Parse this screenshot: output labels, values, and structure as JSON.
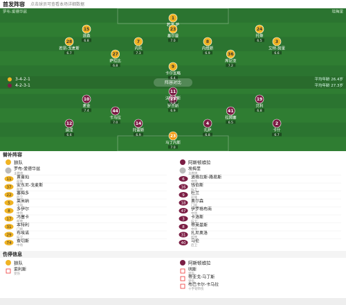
{
  "header": {
    "title": "首发阵容",
    "subtitle": "点击球员可查看本场详细数据"
  },
  "pitch": {
    "center_label": "阵容对比"
  },
  "home": {
    "team": "狼队",
    "coach": "罗布-爱德华兹",
    "formation": "3-4-2-1",
    "info": "平均年龄 26.4岁",
    "color": "#f0b323",
    "players": [
      {
        "number": "1",
        "name": "若泽-萨",
        "rating": "6.9"
      },
      {
        "number": "15",
        "name": "道森",
        "rating": "6.8"
      },
      {
        "number": "23",
        "name": "基尔曼",
        "rating": "7.0"
      },
      {
        "number": "24",
        "name": "托蒂",
        "rating": "6.5"
      },
      {
        "number": "28",
        "name": "若昂-戈麦斯",
        "rating": "6.7"
      },
      {
        "number": "7",
        "name": "内托",
        "rating": "7.3"
      },
      {
        "number": "8",
        "name": "内维斯",
        "rating": "6.9"
      },
      {
        "number": "3",
        "name": "艾特-努里",
        "rating": "6.6"
      },
      {
        "number": "27",
        "name": "萨拉比",
        "rating": "6.8"
      },
      {
        "number": "36",
        "name": "库尼亚",
        "rating": "7.2"
      },
      {
        "number": "9",
        "name": "卡尔瓦略",
        "rating": "6.4"
      }
    ]
  },
  "away": {
    "team": "阿斯顿维拉",
    "coach": "埃梅里",
    "formation": "4-2-3-1",
    "info": "平均年龄 27.3岁",
    "color": "#7b1e44",
    "gk_color": "#f39c12",
    "players": [
      {
        "number": "23",
        "name": "马丁内斯",
        "rating": "7.0"
      },
      {
        "number": "12",
        "name": "迪涅",
        "rating": "6.6"
      },
      {
        "number": "14",
        "name": "托雷斯",
        "rating": "6.9"
      },
      {
        "number": "4",
        "name": "孔萨",
        "rating": "6.8"
      },
      {
        "number": "2",
        "name": "卡什",
        "rating": "6.7"
      },
      {
        "number": "44",
        "name": "卡马拉",
        "rating": "7.0"
      },
      {
        "number": "41",
        "name": "拉姆塞",
        "rating": "6.5"
      },
      {
        "number": "10",
        "name": "麦金",
        "rating": "7.4"
      },
      {
        "number": "27",
        "name": "罗杰斯",
        "rating": "6.9"
      },
      {
        "number": "19",
        "name": "贝利",
        "rating": "6.8"
      },
      {
        "number": "11",
        "name": "沃特金斯",
        "rating": "7.5"
      }
    ]
  },
  "bench": {
    "title": "替补阵容",
    "home": {
      "team": "狼队",
      "coach_role": "主教练",
      "players": [
        {
          "number": "11",
          "name": "黄喜灿",
          "position": "前锋"
        },
        {
          "number": "37",
          "name": "安东尼-戈麦斯",
          "position": "前锋"
        },
        {
          "number": "22",
          "name": "塞梅多",
          "position": "后卫"
        },
        {
          "number": "5",
          "name": "莱米纳",
          "position": "中场"
        },
        {
          "number": "8",
          "name": "多伊尔",
          "position": "中场"
        },
        {
          "number": "17",
          "name": "冯塞卡",
          "position": "前锋"
        },
        {
          "number": "31",
          "name": "本特利",
          "position": "门将"
        },
        {
          "number": "29",
          "name": "布埃诺",
          "position": "后卫"
        },
        {
          "number": "74",
          "name": "查切斯",
          "position": "中场"
        }
      ]
    },
    "away": {
      "team": "阿斯顿维拉",
      "coach_role": "主教练",
      "players": [
        {
          "number": "6",
          "name": "道格拉斯-路易斯",
          "position": "中场"
        },
        {
          "number": "16",
          "name": "钱伯斯",
          "position": "后卫"
        },
        {
          "number": "9",
          "name": "杜兰",
          "position": "前锋"
        },
        {
          "number": "18",
          "name": "奥尔森",
          "position": "门将"
        },
        {
          "number": "47",
          "name": "伊罗格布南",
          "position": "中场"
        },
        {
          "number": "3",
          "name": "卡洛斯",
          "position": "后卫"
        },
        {
          "number": "8",
          "name": "蒂莱曼斯",
          "position": "中场"
        },
        {
          "number": "31",
          "name": "扎尼奥洛",
          "position": "前锋"
        },
        {
          "number": "40",
          "name": "马伦",
          "position": "后卫"
        }
      ]
    }
  },
  "injuries": {
    "title": "伤停信息",
    "home": {
      "team": "狼队",
      "players": [
        {
          "name": "索利斯",
          "reason": "受伤"
        }
      ]
    },
    "away": {
      "team": "阿斯顿维拉",
      "players": [
        {
          "name": "明斯",
          "reason": "受伤"
        },
        {
          "name": "蒂亚戈-马丁斯",
          "reason": "受伤"
        },
        {
          "name": "布巴卡尔-卡马拉",
          "reason": "十字韧带伤"
        }
      ]
    }
  }
}
